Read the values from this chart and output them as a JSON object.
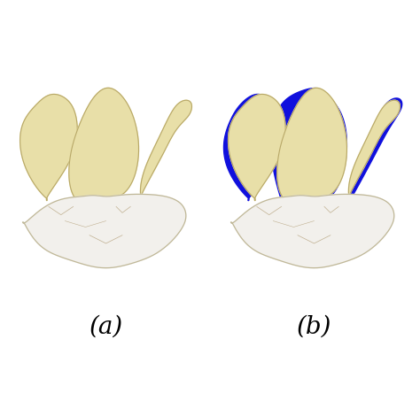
{
  "background_color": "#ffffff",
  "tooth_color": "#e8dfa8",
  "tooth_outline": "#b8a868",
  "crown_color": "#f2f0ec",
  "crown_outline": "#c0b898",
  "blue_color": "#1010dd",
  "red_color": "#cc0000",
  "label_a": "(a)",
  "label_b": "(b)",
  "label_fontsize": 20,
  "fig_width": 4.74,
  "fig_height": 4.53,
  "dpi": 100
}
